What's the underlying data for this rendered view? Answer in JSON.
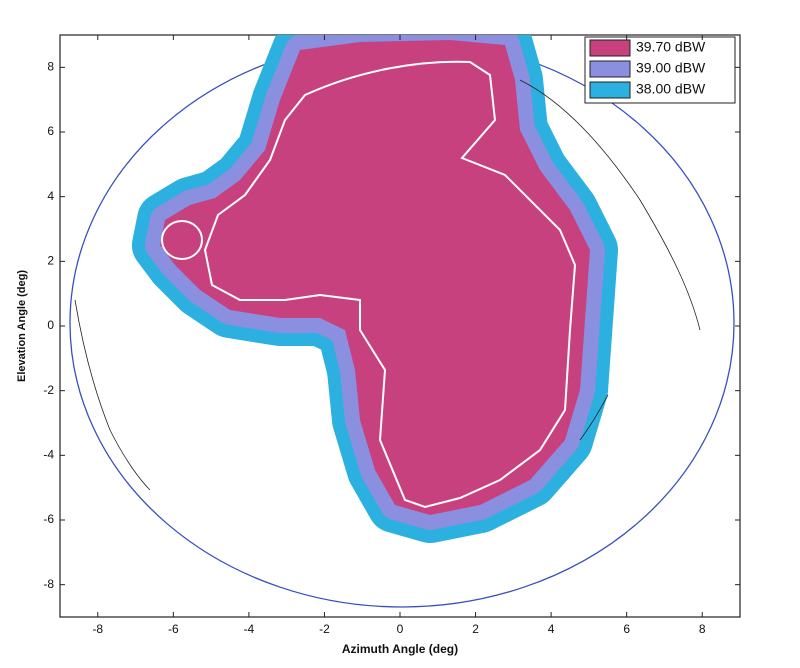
{
  "chart_data": {
    "type": "contour",
    "xlabel": "Azimuth Angle (deg)",
    "ylabel": "Elevation Angle (deg)",
    "xlim": [
      -9,
      9
    ],
    "ylim": [
      -9,
      9
    ],
    "xticks": [
      -8,
      -6,
      -4,
      -2,
      0,
      2,
      4,
      6,
      8
    ],
    "yticks": [
      -8,
      -6,
      -4,
      -2,
      0,
      2,
      4,
      6,
      8
    ],
    "series": [
      {
        "name": "39.70 dBW",
        "color": "#c8417f"
      },
      {
        "name": "39.00 dBW",
        "color": "#8a8fe0"
      },
      {
        "name": "38.00 dBW",
        "color": "#2bb0e0"
      }
    ],
    "legend": "upper right"
  }
}
